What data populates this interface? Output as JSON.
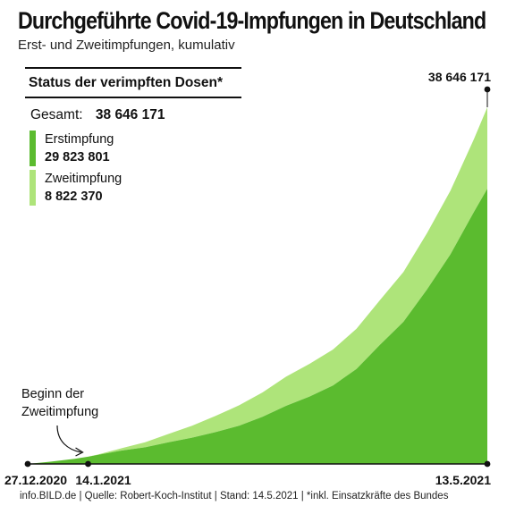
{
  "title": "Durchgeführte Covid-19-Impfungen in Deutschland",
  "subtitle": "Erst- und Zweitimpfungen, kumulativ",
  "status": {
    "heading": "Status der verimpften Dosen*",
    "total_label": "Gesamt:",
    "total_value": "38 646 171"
  },
  "annotation": [
    "Beginn der",
    "Zweitimpfung"
  ],
  "footer": "info.BILD.de | Quelle: Robert-Koch-Institut | Stand: 14.5.2021 | *inkl. Einsatzkräfte des Bundes",
  "colors": {
    "first": "#5bbb2f",
    "second": "#aee47a",
    "text": "#111111"
  },
  "chart_data": {
    "type": "area",
    "stacked": true,
    "xlabel": "",
    "ylabel": "",
    "x_ticks": [
      "27.12.2020",
      "14.1.2021",
      "13.5.2021"
    ],
    "end_label": "38 646 171",
    "ylim": [
      0,
      40000000
    ],
    "x": [
      "27.12.2020",
      "3.1.2021",
      "10.1.2021",
      "14.1.2021",
      "17.1.2021",
      "24.1.2021",
      "31.1.2021",
      "7.2.2021",
      "14.2.2021",
      "21.2.2021",
      "28.2.2021",
      "7.3.2021",
      "14.3.2021",
      "21.3.2021",
      "28.3.2021",
      "4.4.2021",
      "11.4.2021",
      "18.4.2021",
      "25.4.2021",
      "2.5.2021",
      "9.5.2021",
      "13.5.2021"
    ],
    "series": [
      {
        "name": "Erstimpfung",
        "total": "29 823 801",
        "values": [
          0,
          250000,
          550000,
          780000,
          1000000,
          1450000,
          1800000,
          2350000,
          2850000,
          3450000,
          4150000,
          5100000,
          6300000,
          7300000,
          8500000,
          10300000,
          12900000,
          15400000,
          18900000,
          22700000,
          27300000,
          29823801
        ]
      },
      {
        "name": "Zweitimpfung",
        "total": "8 822 370",
        "values": [
          0,
          0,
          0,
          0,
          30000,
          250000,
          550000,
          900000,
          1300000,
          1750000,
          2200000,
          2650000,
          3150000,
          3550000,
          3900000,
          4350000,
          4850000,
          5400000,
          6100000,
          6900000,
          7900000,
          8822370
        ]
      }
    ]
  }
}
